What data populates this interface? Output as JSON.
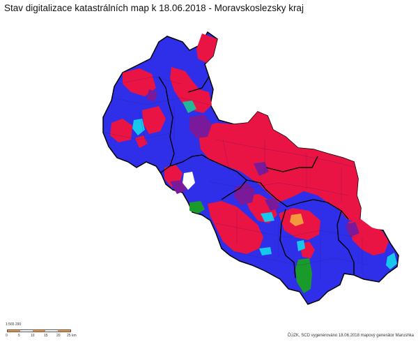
{
  "title": "Stav digitalizace katastrálních map k 18.06.2018 - Moravskoslezsky kraj",
  "colors": {
    "blue": "#2f2fea",
    "red": "#ea1444",
    "purple": "#7a1a9a",
    "cyan": "#18c8ec",
    "teal": "#22b898",
    "green": "#1a9a2a",
    "orange": "#f59a3c",
    "white": "#ffffff",
    "border": "#000000"
  },
  "scale": {
    "label": "1:565 290",
    "ticks": [
      "0",
      "5",
      "10",
      "15",
      "20",
      "25 km"
    ]
  },
  "credit": "ČÚZK, SCD vygenerováno 18.06.2018 mapový generátor Marushka"
}
